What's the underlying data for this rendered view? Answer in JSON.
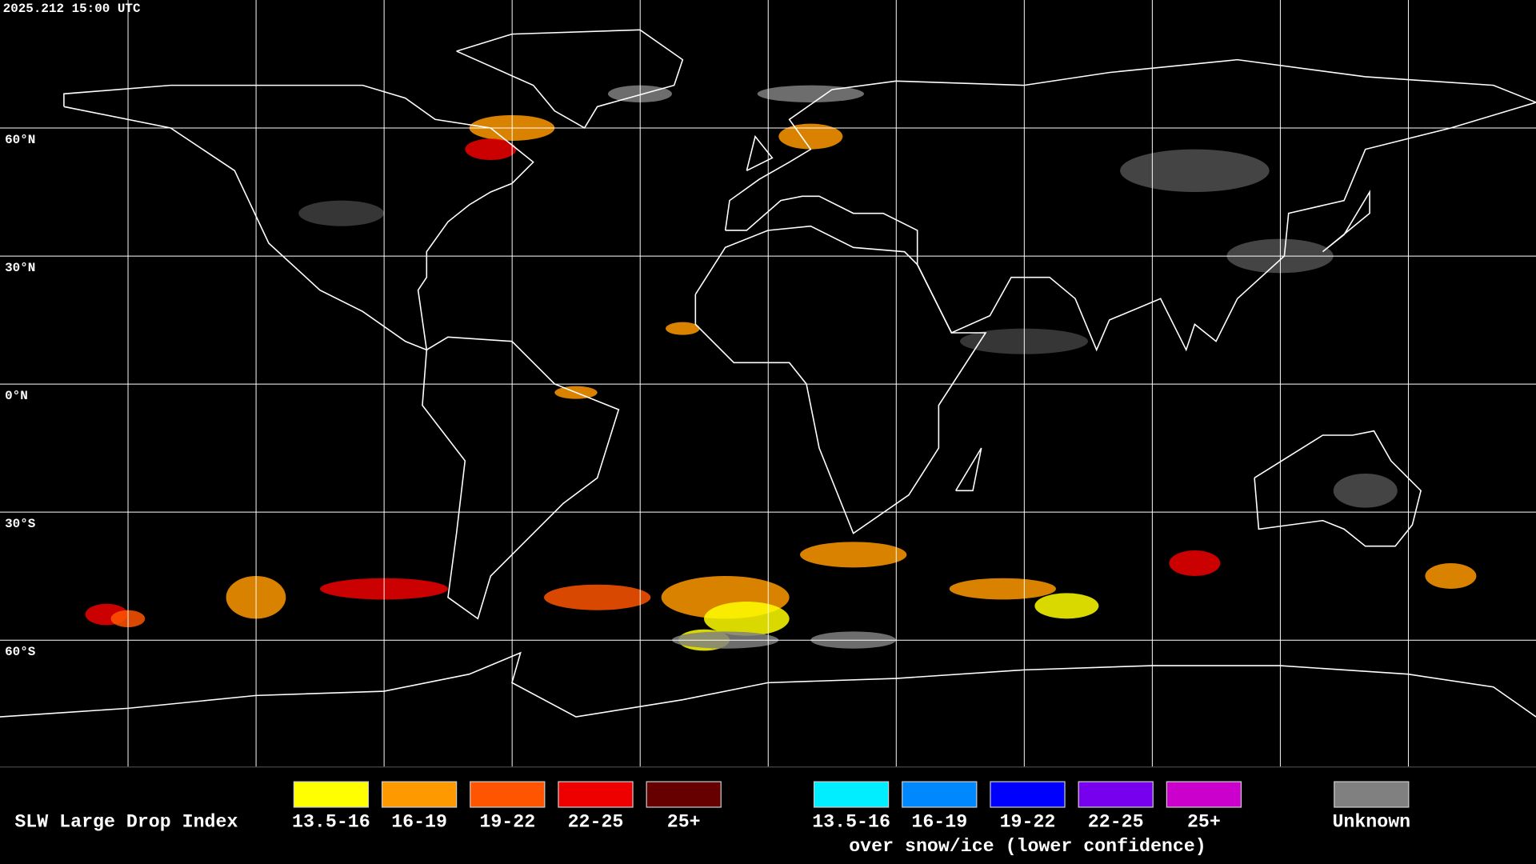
{
  "header": {
    "timestamp": "2025.212 15:00 UTC"
  },
  "map": {
    "latitude_labels": [
      "60°N",
      "30°N",
      "0°N",
      "30°S",
      "60°S"
    ]
  },
  "legend": {
    "title": "SLW Large Drop Index",
    "groups": [
      {
        "items": [
          {
            "label": "13.5-16",
            "color": "#ffff00"
          },
          {
            "label": "16-19",
            "color": "#ff9900"
          },
          {
            "label": "19-22",
            "color": "#ff5500"
          },
          {
            "label": "22-25",
            "color": "#ee0000"
          },
          {
            "label": "25+",
            "color": "#660000"
          }
        ]
      },
      {
        "caption": "over snow/ice (lower confidence)",
        "items": [
          {
            "label": "13.5-16",
            "color": "#00eeff"
          },
          {
            "label": "16-19",
            "color": "#0088ff"
          },
          {
            "label": "19-22",
            "color": "#0000ff"
          },
          {
            "label": "22-25",
            "color": "#7700ee"
          },
          {
            "label": "25+",
            "color": "#cc00cc"
          }
        ]
      },
      {
        "items": [
          {
            "label": "Unknown",
            "color": "#808080"
          }
        ]
      }
    ]
  }
}
